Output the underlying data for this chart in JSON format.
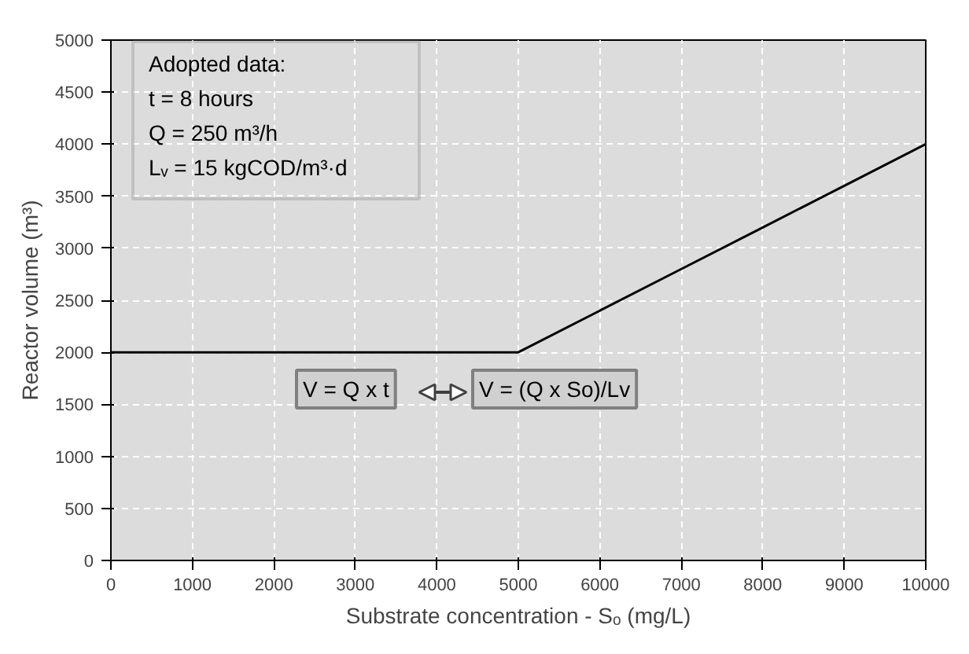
{
  "chart_data": {
    "type": "line",
    "xlabel": "Substrate concentration - Sₒ (mg/L)",
    "ylabel": "Reactor volume (m³)",
    "x": [
      0,
      1000,
      2000,
      3000,
      4000,
      5000,
      6000,
      7000,
      8000,
      9000,
      10000
    ],
    "series": [
      {
        "color": "#000000",
        "values": [
          2000,
          2000,
          2000,
          2000,
          2000,
          2000,
          2400,
          2800,
          3200,
          3600,
          4000
        ]
      }
    ],
    "xlim": [
      0,
      10000
    ],
    "xticks": [
      0,
      1000,
      2000,
      3000,
      4000,
      5000,
      6000,
      7000,
      8000,
      9000,
      10000
    ],
    "ylim": [
      0,
      5000
    ],
    "yticks": [
      0,
      500,
      1000,
      1500,
      2000,
      2500,
      3000,
      3500,
      4000,
      4500,
      5000
    ],
    "grid": true,
    "marker": "none",
    "line_style": "solid",
    "annotations": [
      "Adopted data:",
      "t = 8 hours",
      "Q = 250 m³/h",
      "Lᵥ = 15 kgCOD/m³·d",
      "V = Q x t",
      "V = (Q x So)/Lv"
    ]
  }
}
